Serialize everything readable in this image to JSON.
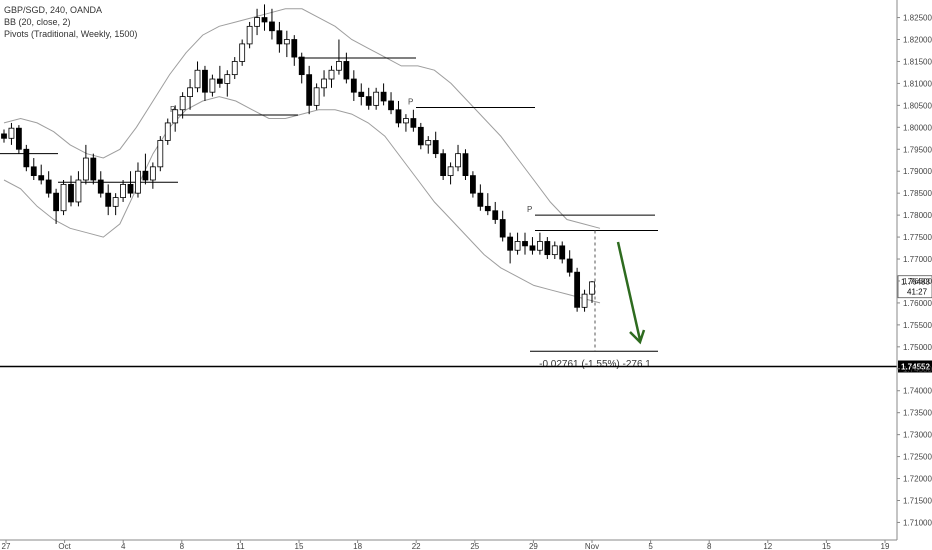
{
  "legend": {
    "symbol_line": "GBP/SGD, 240, OANDA",
    "bb_line": "BB (20, close, 2)",
    "pivots_line": "Pivots (Traditional, Weekly, 1500)"
  },
  "colors": {
    "up_candle": "#ffffff",
    "down_candle": "#000000",
    "band": "#9e9e9e",
    "pivot": "#000000",
    "arrow": "#2e6b1f",
    "horizontal_line": "#000000"
  },
  "chart_data": {
    "type": "candlestick",
    "title": "GBP/SGD, 240, OANDA",
    "y_axis": {
      "range": [
        1.706,
        1.829
      ],
      "ticks": [
        "1.82500",
        "1.82000",
        "1.81500",
        "1.81000",
        "1.80500",
        "1.80000",
        "1.79500",
        "1.79000",
        "1.78500",
        "1.78000",
        "1.77500",
        "1.77000",
        "1.76500",
        "1.76000",
        "1.75500",
        "1.75000",
        "1.74500",
        "1.74000",
        "1.73500",
        "1.73000",
        "1.72500",
        "1.72000",
        "1.71500",
        "1.71000"
      ]
    },
    "x_axis": {
      "ticks": [
        "27",
        "Oct",
        "4",
        "8",
        "11",
        "15",
        "18",
        "22",
        "25",
        "29",
        "Nov",
        "5",
        "8",
        "12",
        "15",
        "19"
      ]
    },
    "price_labels": {
      "last_price": "1.76483",
      "countdown": "41:27",
      "line_level": "1.74552"
    },
    "candles": [
      [
        1.7985,
        1.7995,
        1.7965,
        1.7975
      ],
      [
        1.7975,
        1.801,
        1.796,
        1.7998
      ],
      [
        1.7998,
        1.8005,
        1.794,
        1.795
      ],
      [
        1.795,
        1.796,
        1.79,
        1.791
      ],
      [
        1.791,
        1.793,
        1.788,
        1.789
      ],
      [
        1.789,
        1.7915,
        1.787,
        1.788
      ],
      [
        1.788,
        1.79,
        1.784,
        1.785
      ],
      [
        1.785,
        1.786,
        1.778,
        1.781
      ],
      [
        1.781,
        1.788,
        1.78,
        1.787
      ],
      [
        1.787,
        1.789,
        1.782,
        1.783
      ],
      [
        1.783,
        1.79,
        1.782,
        1.788
      ],
      [
        1.788,
        1.796,
        1.787,
        1.793
      ],
      [
        1.793,
        1.794,
        1.787,
        1.788
      ],
      [
        1.788,
        1.79,
        1.784,
        1.785
      ],
      [
        1.785,
        1.787,
        1.78,
        1.782
      ],
      [
        1.782,
        1.785,
        1.78,
        1.784
      ],
      [
        1.784,
        1.788,
        1.783,
        1.787
      ],
      [
        1.787,
        1.79,
        1.784,
        1.785
      ],
      [
        1.785,
        1.792,
        1.784,
        1.79
      ],
      [
        1.79,
        1.794,
        1.787,
        1.788
      ],
      [
        1.788,
        1.792,
        1.786,
        1.791
      ],
      [
        1.791,
        1.798,
        1.79,
        1.797
      ],
      [
        1.797,
        1.802,
        1.796,
        1.801
      ],
      [
        1.801,
        1.805,
        1.799,
        1.804
      ],
      [
        1.804,
        1.808,
        1.802,
        1.807
      ],
      [
        1.807,
        1.811,
        1.804,
        1.809
      ],
      [
        1.809,
        1.815,
        1.808,
        1.813
      ],
      [
        1.813,
        1.814,
        1.806,
        1.808
      ],
      [
        1.808,
        1.812,
        1.807,
        1.811
      ],
      [
        1.811,
        1.814,
        1.809,
        1.81
      ],
      [
        1.81,
        1.813,
        1.807,
        1.812
      ],
      [
        1.812,
        1.816,
        1.811,
        1.815
      ],
      [
        1.815,
        1.82,
        1.814,
        1.819
      ],
      [
        1.819,
        1.824,
        1.818,
        1.823
      ],
      [
        1.823,
        1.827,
        1.821,
        1.825
      ],
      [
        1.825,
        1.828,
        1.822,
        1.824
      ],
      [
        1.824,
        1.827,
        1.82,
        1.822
      ],
      [
        1.822,
        1.824,
        1.817,
        1.819
      ],
      [
        1.819,
        1.822,
        1.816,
        1.82
      ],
      [
        1.82,
        1.821,
        1.814,
        1.816
      ],
      [
        1.816,
        1.817,
        1.81,
        1.812
      ],
      [
        1.812,
        1.814,
        1.803,
        1.805
      ],
      [
        1.805,
        1.81,
        1.804,
        1.809
      ],
      [
        1.809,
        1.813,
        1.807,
        1.811
      ],
      [
        1.811,
        1.814,
        1.809,
        1.813
      ],
      [
        1.813,
        1.82,
        1.812,
        1.815
      ],
      [
        1.815,
        1.817,
        1.81,
        1.811
      ],
      [
        1.811,
        1.813,
        1.806,
        1.808
      ],
      [
        1.808,
        1.81,
        1.805,
        1.807
      ],
      [
        1.807,
        1.809,
        1.804,
        1.805
      ],
      [
        1.805,
        1.809,
        1.804,
        1.808
      ],
      [
        1.808,
        1.81,
        1.805,
        1.806
      ],
      [
        1.806,
        1.808,
        1.803,
        1.804
      ],
      [
        1.804,
        1.806,
        1.8,
        1.801
      ],
      [
        1.801,
        1.803,
        1.799,
        1.802
      ],
      [
        1.802,
        1.804,
        1.799,
        1.8
      ],
      [
        1.8,
        1.801,
        1.795,
        1.796
      ],
      [
        1.796,
        1.798,
        1.794,
        1.797
      ],
      [
        1.797,
        1.799,
        1.793,
        1.794
      ],
      [
        1.794,
        1.795,
        1.788,
        1.789
      ],
      [
        1.789,
        1.792,
        1.787,
        1.791
      ],
      [
        1.791,
        1.796,
        1.79,
        1.794
      ],
      [
        1.794,
        1.795,
        1.788,
        1.789
      ],
      [
        1.789,
        1.79,
        1.784,
        1.785
      ],
      [
        1.785,
        1.787,
        1.781,
        1.782
      ],
      [
        1.782,
        1.785,
        1.78,
        1.781
      ],
      [
        1.781,
        1.783,
        1.778,
        1.779
      ],
      [
        1.779,
        1.781,
        1.774,
        1.775
      ],
      [
        1.775,
        1.776,
        1.769,
        1.772
      ],
      [
        1.772,
        1.776,
        1.771,
        1.774
      ],
      [
        1.774,
        1.776,
        1.771,
        1.773
      ],
      [
        1.773,
        1.775,
        1.771,
        1.772
      ],
      [
        1.772,
        1.776,
        1.771,
        1.774
      ],
      [
        1.774,
        1.775,
        1.77,
        1.771
      ],
      [
        1.771,
        1.774,
        1.77,
        1.773
      ],
      [
        1.773,
        1.774,
        1.769,
        1.77
      ],
      [
        1.77,
        1.772,
        1.766,
        1.767
      ],
      [
        1.767,
        1.768,
        1.758,
        1.759
      ],
      [
        1.759,
        1.763,
        1.758,
        1.762
      ],
      [
        1.762,
        1.765,
        1.76,
        1.7648
      ]
    ],
    "bollinger_upper": [
      1.801,
      1.802,
      1.801,
      1.799,
      1.796,
      1.794,
      1.793,
      1.795,
      1.8,
      1.806,
      1.812,
      1.817,
      1.821,
      1.823,
      1.824,
      1.825,
      1.826,
      1.827,
      1.827,
      1.825,
      1.823,
      1.82,
      1.818,
      1.816,
      1.814,
      1.814,
      1.813,
      1.81,
      1.806,
      1.802,
      1.798,
      1.793,
      1.788,
      1.783,
      1.779,
      1.778,
      1.777
    ],
    "bollinger_lower": [
      1.788,
      1.786,
      1.782,
      1.779,
      1.777,
      1.776,
      1.775,
      1.778,
      1.786,
      1.794,
      1.8,
      1.804,
      1.806,
      1.807,
      1.806,
      1.804,
      1.802,
      1.802,
      1.803,
      1.804,
      1.804,
      1.803,
      1.801,
      1.798,
      1.793,
      1.788,
      1.783,
      1.779,
      1.775,
      1.771,
      1.768,
      1.766,
      1.764,
      1.763,
      1.762,
      1.761,
      1.76
    ],
    "pivot_lines": [
      {
        "level": 1.794,
        "label": ""
      },
      {
        "level": 1.7875,
        "label": ""
      },
      {
        "level": 1.8028,
        "label": "P"
      },
      {
        "level": 1.8158,
        "label": ""
      },
      {
        "level": 1.8045,
        "label": "P"
      },
      {
        "level": 1.78,
        "label": "P"
      },
      {
        "level": 1.7765,
        "label": ""
      }
    ],
    "measure": {
      "text": "-0.02761 (-1.55%) -276.1",
      "top": 1.7765,
      "bottom": 1.749
    },
    "horizontal_line": 1.74552
  }
}
